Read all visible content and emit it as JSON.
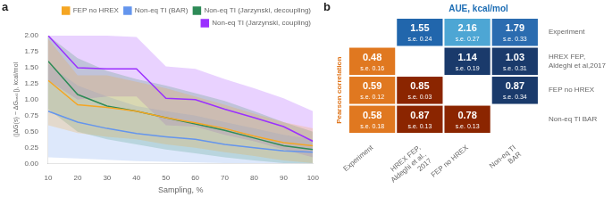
{
  "chart_data": [
    {
      "type": "line",
      "x": [
        10,
        20,
        30,
        40,
        50,
        60,
        70,
        80,
        90,
        100
      ],
      "xlabel": "Sampling, %",
      "ylabel": "(|ΔG(s) − ΔGₓₐₛₜ|), kcal/mol",
      "xlim": [
        10,
        100
      ],
      "ylim": [
        0.0,
        2.0
      ],
      "xticks": [
        10,
        20,
        30,
        40,
        50,
        60,
        70,
        80,
        90,
        100
      ],
      "yticks": [
        {
          "value": 0.0,
          "label": "0.00"
        },
        {
          "value": 0.25,
          "label": "0.25"
        },
        {
          "value": 0.5,
          "label": "0.50"
        },
        {
          "value": 0.75,
          "label": "0.75"
        },
        {
          "value": 1.0,
          "label": "1.00"
        },
        {
          "value": 1.25,
          "label": "1.25"
        },
        {
          "value": 1.5,
          "label": "1.50"
        },
        {
          "value": 1.75,
          "label": "1.75"
        },
        {
          "value": 2.0,
          "label": "2.00"
        }
      ],
      "series": [
        {
          "name": "FEP no HREX",
          "color": "#f5a623",
          "values": [
            1.3,
            0.92,
            0.88,
            0.82,
            0.72,
            0.64,
            0.55,
            0.43,
            0.33,
            0.28
          ],
          "lower": [
            0.6,
            0.48,
            0.42,
            0.38,
            0.3,
            0.25,
            0.18,
            0.12,
            0.05,
            0.01
          ],
          "upper": [
            1.95,
            1.38,
            1.38,
            1.28,
            1.18,
            1.05,
            0.92,
            0.78,
            0.65,
            0.55
          ]
        },
        {
          "name": "Non-eq TI (BAR)",
          "color": "#6495ed",
          "values": [
            0.82,
            0.65,
            0.55,
            0.47,
            0.42,
            0.38,
            0.3,
            0.25,
            0.2,
            0.18
          ],
          "lower": [
            0.1,
            0.08,
            0.06,
            0.04,
            0.03,
            0.02,
            0.01,
            0.01,
            0.0,
            0.0
          ],
          "upper": [
            1.55,
            1.22,
            1.05,
            0.9,
            0.82,
            0.75,
            0.65,
            0.55,
            0.45,
            0.38
          ]
        },
        {
          "name": "Non-eq TI (Jarzynski, decoupling)",
          "color": "#2e8b57",
          "values": [
            1.6,
            1.08,
            0.9,
            0.82,
            0.72,
            0.62,
            0.52,
            0.4,
            0.28,
            0.22
          ],
          "lower": [
            0.85,
            0.5,
            0.38,
            0.3,
            0.22,
            0.16,
            0.1,
            0.05,
            0.01,
            0.0
          ],
          "upper": [
            2.0,
            1.65,
            1.45,
            1.32,
            1.22,
            1.1,
            0.98,
            0.82,
            0.65,
            0.5
          ]
        },
        {
          "name": "Non-eq TI (Jarzynski, coupling)",
          "color": "#9b30ff",
          "values": [
            2.0,
            1.5,
            1.48,
            1.48,
            1.02,
            1.0,
            0.85,
            0.72,
            0.58,
            0.35
          ],
          "lower": [
            1.3,
            1.0,
            1.05,
            1.05,
            0.6,
            0.58,
            0.45,
            0.35,
            0.22,
            0.1
          ],
          "upper": [
            2.0,
            2.0,
            2.0,
            1.98,
            1.52,
            1.48,
            1.32,
            1.18,
            1.02,
            0.82
          ]
        }
      ],
      "legend": "upper right",
      "grid": false,
      "annotations": [
        {
          "text": "a"
        }
      ]
    },
    {
      "type": "heatmap",
      "title": "AUE, kcal/mol",
      "title_color": "#1e6eb5",
      "ylabel": "Pearson correlation",
      "ylabel_color": "#e07820",
      "categories": [
        "Experiment",
        "HREX FEP,\nAldeghi et al.,\n2017",
        "FEP no HREX",
        "Non-eq TI\nBAR"
      ],
      "rows": [
        "Experiment",
        "HREX FEP,\nAldeghi et al,2017",
        "FEP no HREX",
        "Non-eq TI BAR"
      ],
      "values": [
        [
          null,
          1.55,
          2.16,
          1.79
        ],
        [
          0.48,
          null,
          1.14,
          1.03
        ],
        [
          0.59,
          0.85,
          null,
          0.87
        ],
        [
          0.58,
          0.87,
          0.78,
          null
        ]
      ],
      "se": [
        [
          null,
          0.24,
          0.27,
          0.33
        ],
        [
          0.16,
          null,
          0.19,
          0.31
        ],
        [
          0.12,
          0.03,
          null,
          0.34
        ],
        [
          0.18,
          0.13,
          0.13,
          null
        ]
      ],
      "se_label": "s.e.",
      "colors": [
        [
          null,
          "#2166ac",
          "#4da6d4",
          "#2b6cb0"
        ],
        [
          "#e07820",
          null,
          "#1a3a6b",
          "#1a3a6b"
        ],
        [
          "#e07820",
          "#8b2500",
          null,
          "#1a3a6b"
        ],
        [
          "#e07820",
          "#8b2500",
          "#8b2500",
          null
        ]
      ],
      "data_labels": true,
      "grid": false,
      "annotations": [
        {
          "text": "b"
        }
      ]
    }
  ]
}
